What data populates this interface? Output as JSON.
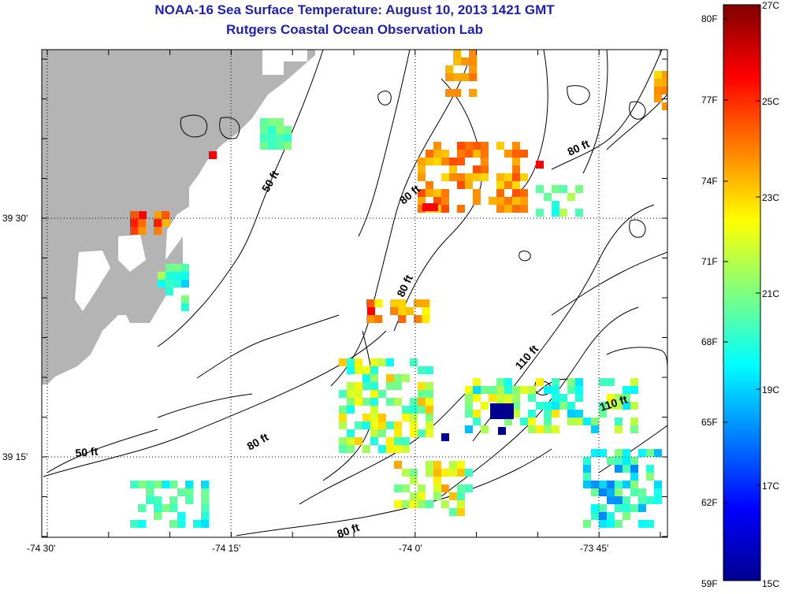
{
  "title": {
    "line1": "NOAA-16 Sea Surface Temperature:  August 10, 2013 1421 GMT",
    "line2": "Rutgers Coastal Ocean Observation Lab"
  },
  "axes": {
    "x_ticks": [
      "-74 30'",
      "-74 15'",
      "-74 0'",
      "-73 45'"
    ],
    "y_ticks": [
      "39 30'",
      "39 15'"
    ]
  },
  "colorbar": {
    "fahrenheit": [
      "80F",
      "77F",
      "74F",
      "71F",
      "68F",
      "65F",
      "62F",
      "59F"
    ],
    "celsius": [
      "27C",
      "25C",
      "23C",
      "21C",
      "19C",
      "17C",
      "15C"
    ],
    "range_c": [
      15,
      27
    ]
  },
  "depth_labels": [
    "50 ft",
    "80 ft",
    "80 ft",
    "80 ft",
    "110 ft",
    "110 ft",
    "50 ft",
    "80 ft",
    "80 ft"
  ],
  "colors": {
    "title": "#1f1fb4",
    "land": "#b4b4b4",
    "contour": "#000000"
  },
  "sst_patches_c": [
    {
      "region": "northeast-cluster",
      "temp_c": 23.6
    },
    {
      "region": "southeast-cluster",
      "temp_c": 20.2
    },
    {
      "region": "cold-spot",
      "temp_c": 15.2
    }
  ]
}
